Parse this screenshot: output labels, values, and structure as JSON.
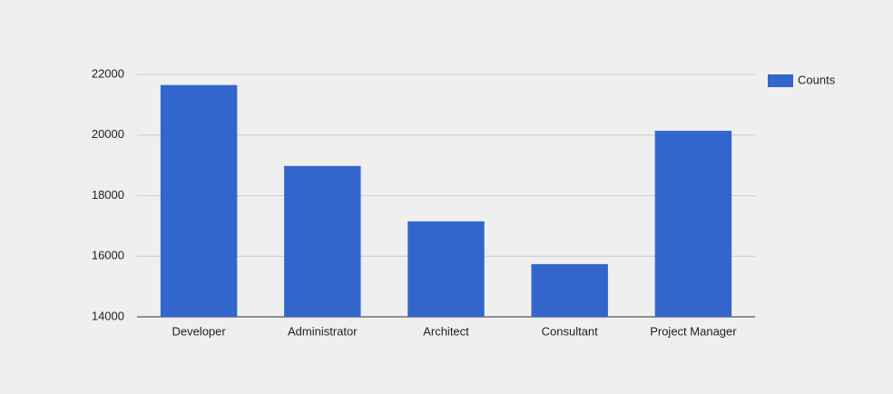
{
  "chart_data": {
    "type": "bar",
    "categories": [
      "Developer",
      "Administrator",
      "Architect",
      "Consultant",
      "Project Manager"
    ],
    "series": [
      {
        "name": "Counts",
        "color": "#3366cc",
        "values": [
          21650,
          18980,
          17150,
          15740,
          20140
        ]
      }
    ],
    "ylim": [
      14000,
      22000
    ],
    "yticks": [
      14000,
      16000,
      18000,
      20000,
      22000
    ],
    "grid": true,
    "legend": "right"
  }
}
